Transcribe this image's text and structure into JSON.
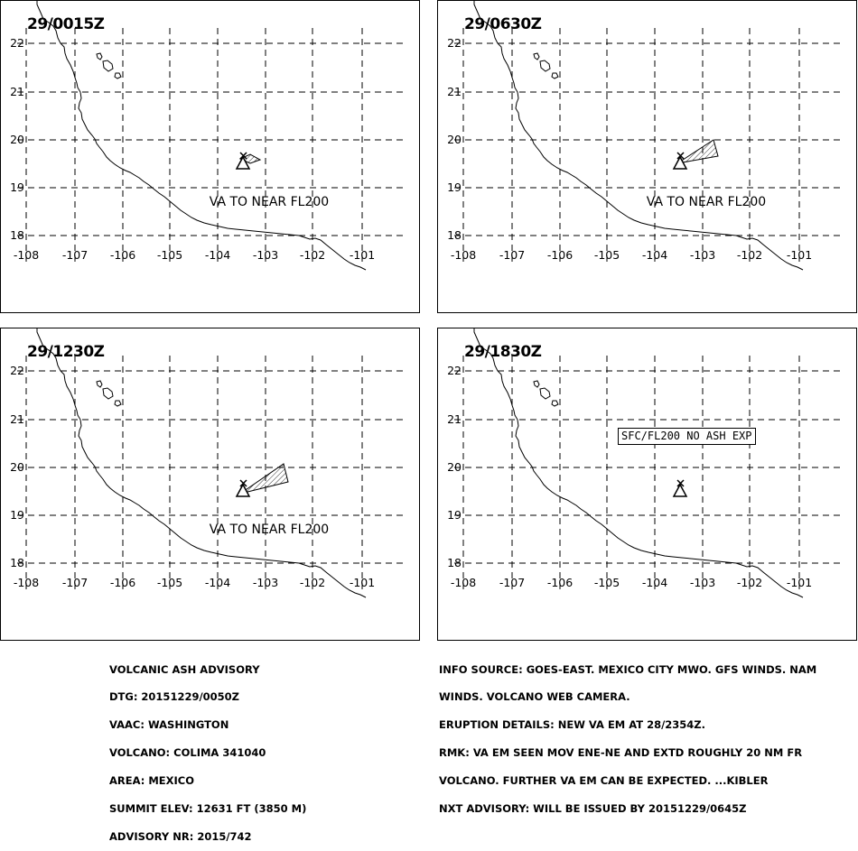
{
  "panels": [
    {
      "time": "29/0015Z",
      "label": "VA TO NEAR FL200",
      "ash": "small",
      "exp_box": ""
    },
    {
      "time": "29/0630Z",
      "label": "VA TO NEAR FL200",
      "ash": "medium",
      "exp_box": ""
    },
    {
      "time": "29/1230Z",
      "label": "VA TO NEAR FL200",
      "ash": "large",
      "exp_box": ""
    },
    {
      "time": "29/1830Z",
      "label": "",
      "ash": "none",
      "exp_box": "SFC/FL200 NO ASH EXP"
    }
  ],
  "axes": {
    "lon_ticks": [
      "-108",
      "-107",
      "-106",
      "-105",
      "-104",
      "-103",
      "-102",
      "-101"
    ],
    "lat_ticks": [
      "22",
      "21",
      "20",
      "19",
      "18"
    ]
  },
  "advisory_left": [
    "VOLCANIC ASH ADVISORY",
    "DTG: 20151229/0050Z",
    "VAAC: WASHINGTON",
    "VOLCANO: COLIMA 341040",
    "AREA: MEXICO",
    "SUMMIT ELEV: 12631 FT (3850 M)",
    "ADVISORY NR: 2015/742"
  ],
  "advisory_right": [
    "INFO SOURCE: GOES-EAST. MEXICO CITY MWO. GFS WINDS. NAM",
    "WINDS. VOLCANO WEB CAMERA.",
    "ERUPTION DETAILS: NEW VA EM AT 28/2354Z.",
    "RMK: VA EM SEEN MOV ENE-NE AND EXTD ROUGHLY 20 NM FR",
    "VOLCANO. FURTHER VA EM CAN BE EXPECTED. ...KIBLER",
    "NXT ADVISORY: WILL BE ISSUED BY 20151229/0645Z"
  ]
}
